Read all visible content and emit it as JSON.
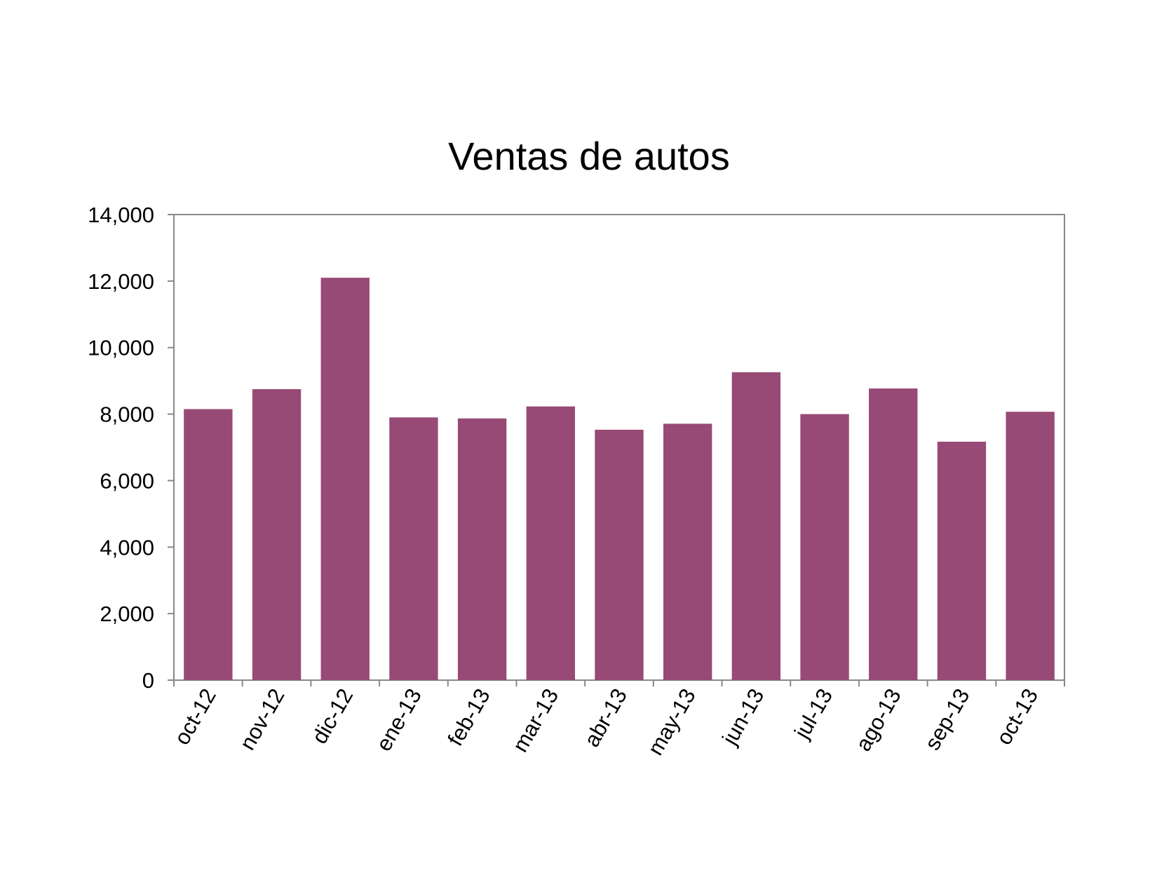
{
  "chart_data": {
    "type": "bar",
    "title": "Ventas de autos",
    "xlabel": "",
    "ylabel": "",
    "categories": [
      "oct-12",
      "nov-12",
      "dic-12",
      "ene-13",
      "feb-13",
      "mar-13",
      "abr-13",
      "may-13",
      "jun-13",
      "jul-13",
      "ago-13",
      "sep-13",
      "oct-13"
    ],
    "values": [
      8150,
      8750,
      12100,
      7900,
      7870,
      8230,
      7530,
      7710,
      9260,
      8000,
      8770,
      7170,
      8070
    ],
    "ylim": [
      0,
      14000
    ],
    "yticks": [
      0,
      2000,
      4000,
      6000,
      8000,
      10000,
      12000,
      14000
    ],
    "ytick_labels": [
      "0",
      "2,000",
      "4,000",
      "6,000",
      "8,000",
      "10,000",
      "12,000",
      "14,000"
    ],
    "grid": false,
    "legend": "none",
    "bar_color": "#974A75",
    "axis_color": "#888888"
  }
}
